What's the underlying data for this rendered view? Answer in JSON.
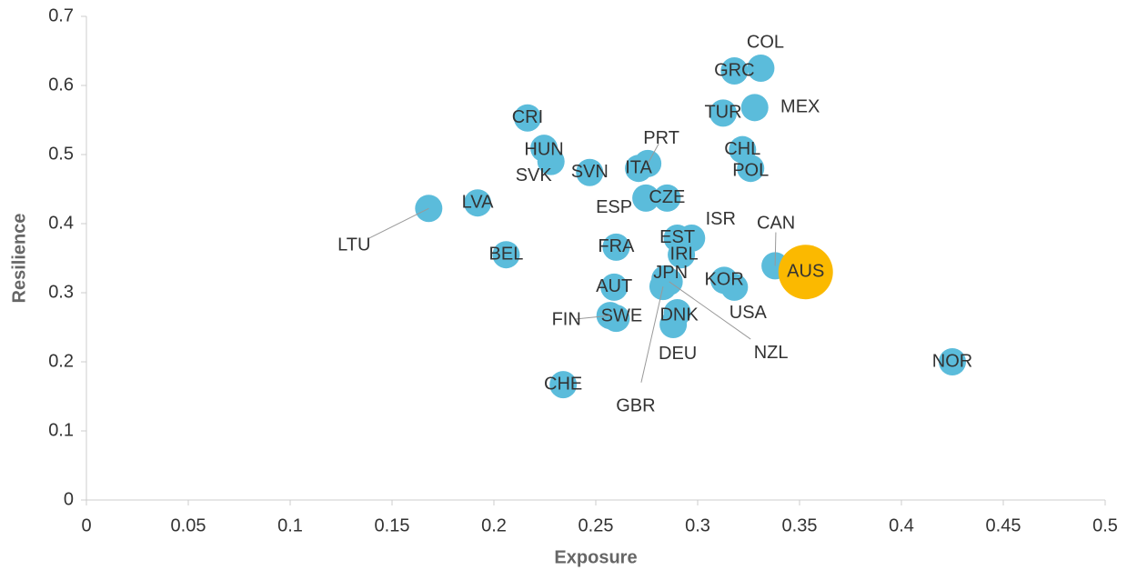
{
  "chart_data": {
    "type": "scatter",
    "x_label": "Exposure",
    "y_label": "Resilience",
    "xlim": [
      0,
      0.5
    ],
    "xticks": [
      0,
      0.05,
      0.1,
      0.15,
      0.2,
      0.25,
      0.3,
      0.35,
      0.4,
      0.45,
      0.5
    ],
    "ylim": [
      0,
      0.7
    ],
    "yticks": [
      0,
      0.1,
      0.2,
      0.3,
      0.4,
      0.5,
      0.6,
      0.7
    ],
    "labels": [
      "COL",
      "GRC",
      "MEX",
      "TUR",
      "CRI",
      "HUN",
      "SVK",
      "SVN",
      "PRT",
      "ITA",
      "CHL",
      "POL",
      "ESP",
      "CZE",
      "LVA",
      "LTU",
      "ISR",
      "EST",
      "IRL",
      "CAN",
      "AUS",
      "FRA",
      "BEL",
      "JPN",
      "KOR",
      "USA",
      "AUT",
      "SWE",
      "FIN",
      "DNK",
      "DEU",
      "NZL",
      "GBR",
      "CHE",
      "NOR"
    ],
    "x": [
      0.331,
      0.318,
      0.328,
      0.3125,
      0.2165,
      0.2246,
      0.228,
      0.247,
      0.2755,
      0.271,
      0.322,
      0.326,
      0.2746,
      0.285,
      0.192,
      0.168,
      0.297,
      0.29,
      0.292,
      0.338,
      0.353,
      0.26,
      0.206,
      0.284,
      0.313,
      0.318,
      0.259,
      0.26,
      0.257,
      0.29,
      0.288,
      0.286,
      0.283,
      0.234,
      0.425
    ],
    "y": [
      0.625,
      0.621,
      0.568,
      0.56,
      0.553,
      0.509,
      0.49,
      0.474,
      0.487,
      0.48,
      0.507,
      0.48,
      0.437,
      0.437,
      0.43,
      0.422,
      0.379,
      0.379,
      0.355,
      0.339,
      0.33,
      0.366,
      0.355,
      0.32,
      0.318,
      0.308,
      0.308,
      0.263,
      0.267,
      0.271,
      0.254,
      0.316,
      0.309,
      0.167,
      0.2
    ],
    "colors": [
      "#5bbcdb",
      "#5bbcdb",
      "#5bbcdb",
      "#5bbcdb",
      "#5bbcdb",
      "#5bbcdb",
      "#5bbcdb",
      "#5bbcdb",
      "#5bbcdb",
      "#5bbcdb",
      "#5bbcdb",
      "#5bbcdb",
      "#5bbcdb",
      "#5bbcdb",
      "#5bbcdb",
      "#5bbcdb",
      "#5bbcdb",
      "#5bbcdb",
      "#5bbcdb",
      "#5bbcdb",
      "#fbb900",
      "#5bbcdb",
      "#5bbcdb",
      "#5bbcdb",
      "#5bbcdb",
      "#5bbcdb",
      "#5bbcdb",
      "#5bbcdb",
      "#5bbcdb",
      "#5bbcdb",
      "#5bbcdb",
      "#5bbcdb",
      "#5bbcdb",
      "#5bbcdb",
      "#5bbcdb"
    ]
  }
}
